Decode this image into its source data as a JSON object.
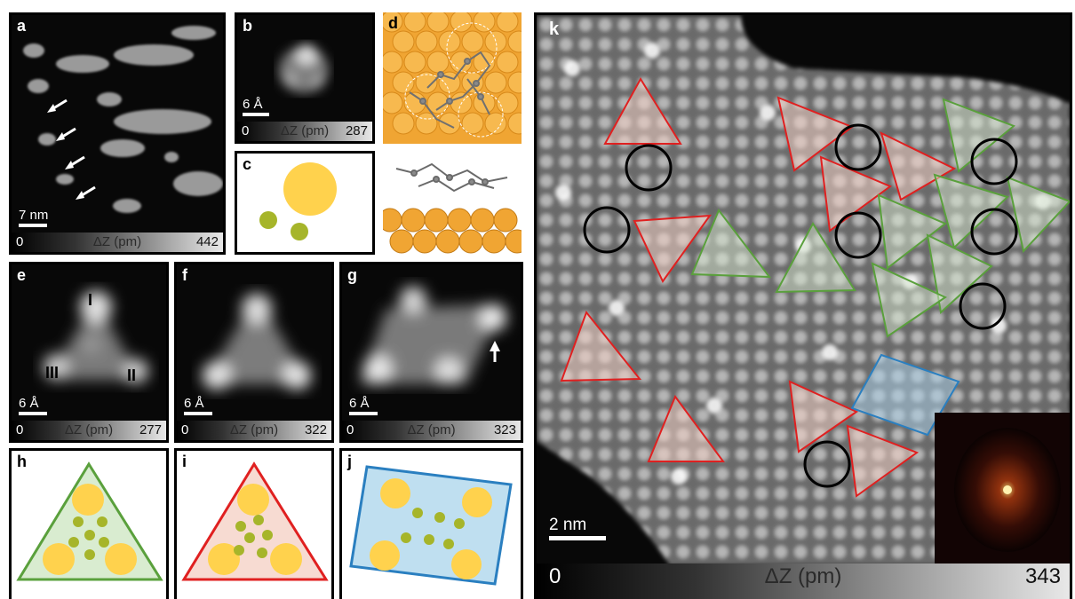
{
  "panels": {
    "a": {
      "label": "a",
      "scale": "7 nm",
      "cbar_min": "0",
      "cbar_mid": "ΔZ (pm)",
      "cbar_max": "442"
    },
    "b": {
      "label": "b",
      "scale": "6 Å",
      "cbar_min": "0",
      "cbar_mid": "ΔZ (pm)",
      "cbar_max": "287"
    },
    "c": {
      "label": "c"
    },
    "d": {
      "label": "d"
    },
    "e": {
      "label": "e",
      "scale": "6 Å",
      "cbar_min": "0",
      "cbar_mid": "ΔZ (pm)",
      "cbar_max": "277",
      "roman": [
        "I",
        "II",
        "III"
      ]
    },
    "f": {
      "label": "f",
      "scale": "6 Å",
      "cbar_min": "0",
      "cbar_mid": "ΔZ (pm)",
      "cbar_max": "322"
    },
    "g": {
      "label": "g",
      "scale": "6 Å",
      "cbar_min": "0",
      "cbar_mid": "ΔZ (pm)",
      "cbar_max": "323"
    },
    "h": {
      "label": "h"
    },
    "i": {
      "label": "i"
    },
    "j": {
      "label": "j"
    },
    "k": {
      "label": "k",
      "scale": "2 nm",
      "cbar_min": "0",
      "cbar_mid": "ΔZ (pm)",
      "cbar_max": "343"
    }
  },
  "colors": {
    "green": "#5aa03c",
    "red": "#e02020",
    "blue": "#2a7fc0",
    "yellow": "#ffd24d",
    "olive": "#a6b52a",
    "gold_surface": "#f0a533"
  }
}
